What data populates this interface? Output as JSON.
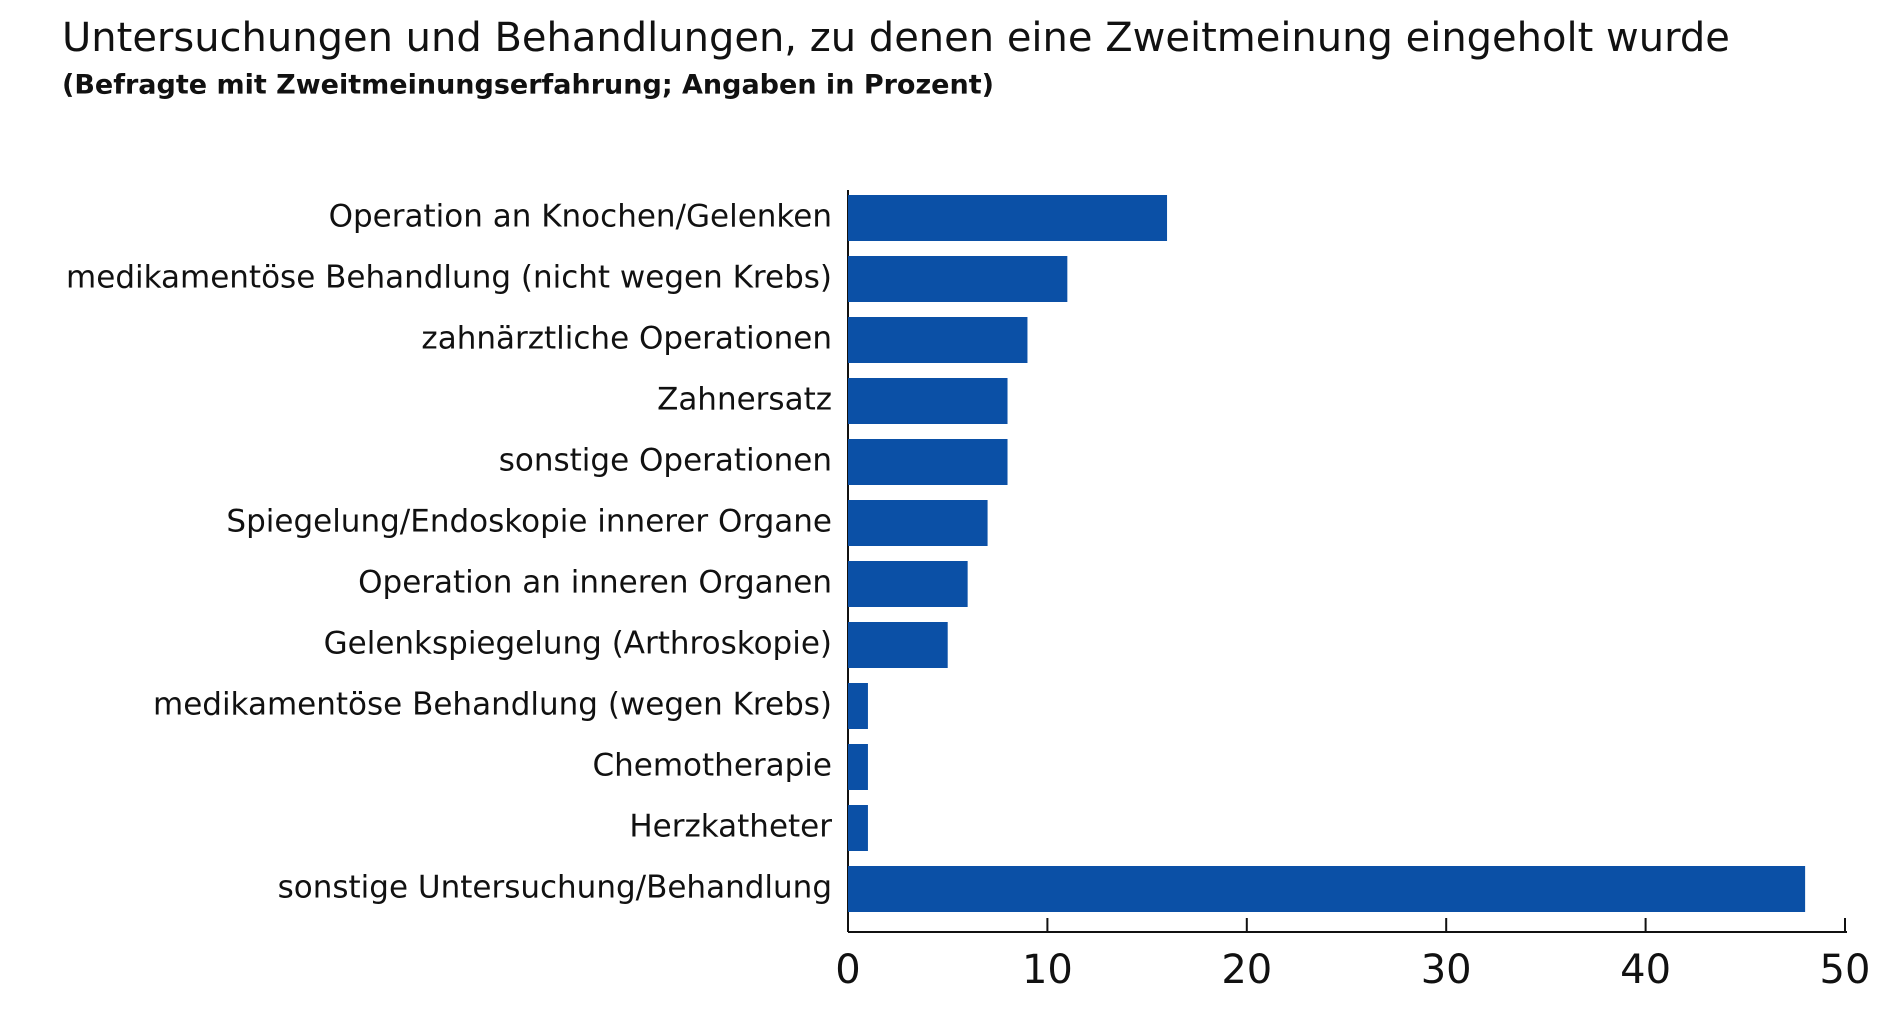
{
  "chart_data": {
    "type": "barh",
    "title": "Untersuchungen und Behandlungen, zu denen eine Zweitmeinung eingeholt wurde",
    "subtitle": "(Befragte mit Zweitmeinungserfahrung; Angaben in Prozent)",
    "categories": [
      "Operation an Knochen/Gelenken",
      "medikamentöse Behandlung (nicht wegen Krebs)",
      "zahnärztliche Operationen",
      "Zahnersatz",
      "sonstige Operationen",
      "Spiegelung/Endoskopie innerer Organe",
      "Operation an inneren Organen",
      "Gelenkspiegelung (Arthroskopie)",
      "medikamentöse Behandlung (wegen Krebs)",
      "Chemotherapie",
      "Herzkatheter",
      "sonstige Untersuchung/Behandlung"
    ],
    "values": [
      16,
      11,
      9,
      8,
      8,
      7,
      6,
      5,
      1,
      1,
      1,
      48
    ],
    "color": "#0b50a6",
    "xlim": [
      0,
      50
    ],
    "xticks": [
      0,
      10,
      20,
      30,
      40,
      50
    ],
    "grid": false
  }
}
